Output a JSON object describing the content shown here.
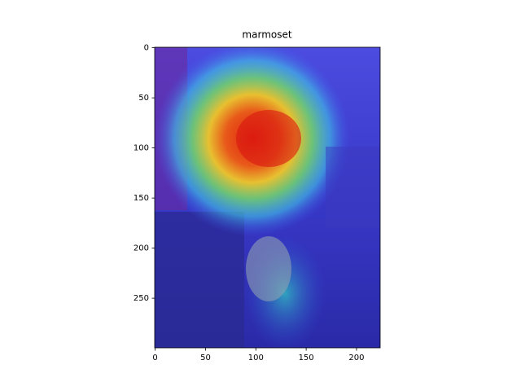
{
  "chart_data": {
    "type": "image",
    "title": "marmoset",
    "xlim": [
      -0.5,
      223.5
    ],
    "ylim": [
      299.5,
      -0.5
    ],
    "xticks": [
      0,
      50,
      100,
      150,
      200
    ],
    "yticks": [
      0,
      50,
      100,
      150,
      200,
      250
    ]
  }
}
